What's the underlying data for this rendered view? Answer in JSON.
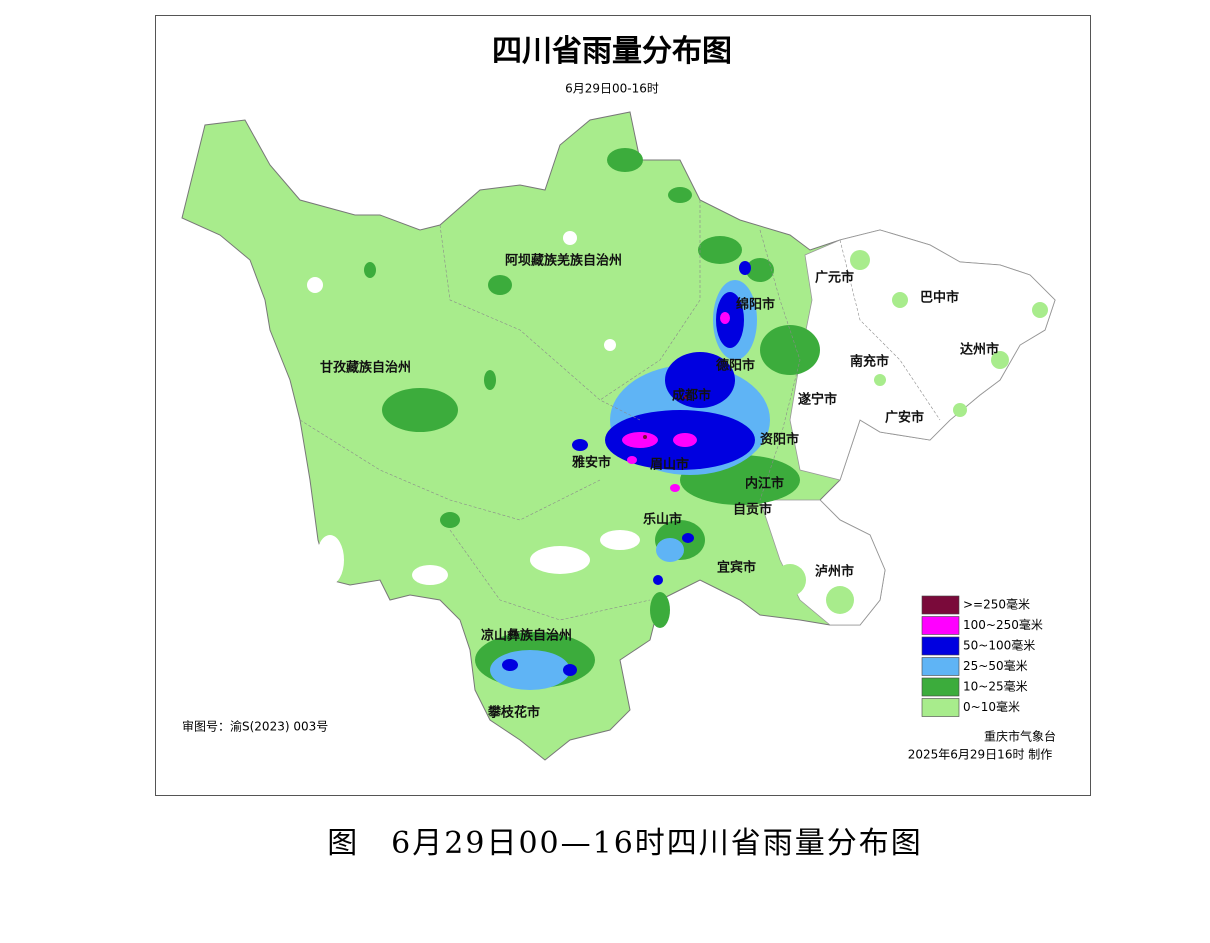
{
  "map": {
    "title": "四川省雨量分布图",
    "subtitle": "6月29日00-16时",
    "regions": [
      "阿坝藏族羌族自治州",
      "甘孜藏族自治州",
      "广元市",
      "巴中市",
      "绵阳市",
      "德阳市",
      "南充市",
      "达州市",
      "遂宁市",
      "成都市",
      "广安市",
      "资阳市",
      "雅安市",
      "眉山市",
      "内江市",
      "自贡市",
      "乐山市",
      "宜宾市",
      "泸州市",
      "凉山彝族自治州",
      "攀枝花市"
    ],
    "legend": [
      {
        "label": ">=250毫米",
        "color": "#7a0a3a"
      },
      {
        "label": "100~250毫米",
        "color": "#ff00ff"
      },
      {
        "label": "50~100毫米",
        "color": "#0000e0"
      },
      {
        "label": "25~50毫米",
        "color": "#5fb4f5"
      },
      {
        "label": "10~25毫米",
        "color": "#3cac3c"
      },
      {
        "label": "0~10毫米",
        "color": "#a8ec8c"
      }
    ],
    "approval": "审图号：渝S(2023) 003号",
    "credit": "重庆市气象台",
    "made": "2025年6月29日16时 制作"
  },
  "caption": "图　6月29日00—16时四川省雨量分布图"
}
